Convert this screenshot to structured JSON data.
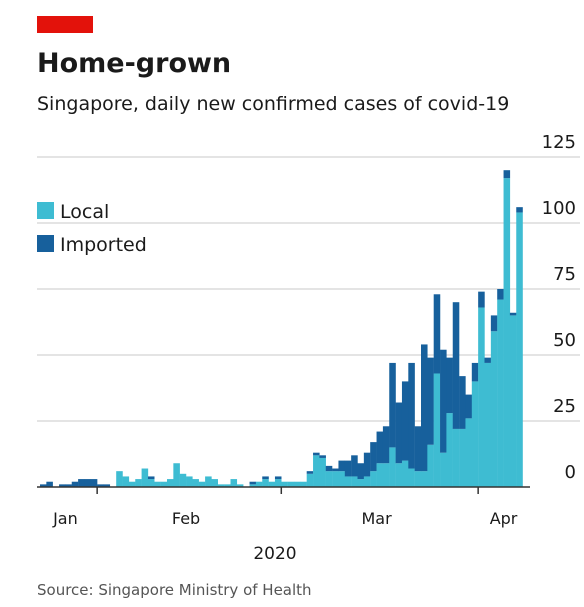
{
  "chart_data": {
    "type": "bar",
    "stacked": true,
    "title": "Home-grown",
    "subtitle": "Singapore, daily new confirmed cases of covid-19",
    "xlabel": "2020",
    "source": "Source: Singapore Ministry of Health",
    "series": [
      {
        "name": "Local",
        "color": "#3ebcd2",
        "values": [
          0,
          0,
          0,
          0,
          0,
          0,
          0,
          0,
          0,
          0,
          0,
          0,
          6,
          4,
          2,
          3,
          7,
          3,
          2,
          2,
          3,
          9,
          5,
          4,
          3,
          2,
          4,
          3,
          1,
          1,
          3,
          1,
          0,
          1,
          2,
          3,
          2,
          3,
          2,
          2,
          2,
          2,
          5,
          12,
          11,
          6,
          6,
          6,
          4,
          4,
          3,
          4,
          6,
          9,
          9,
          15,
          9,
          10,
          7,
          6,
          6,
          16,
          43,
          13,
          28,
          22,
          22,
          26,
          40,
          68,
          47,
          59,
          71,
          117,
          65,
          104
        ]
      },
      {
        "name": "Imported",
        "color": "#17609c",
        "values": [
          1,
          2,
          0,
          1,
          1,
          2,
          3,
          3,
          3,
          1,
          1,
          0,
          0,
          0,
          0,
          0,
          0,
          1,
          0,
          0,
          0,
          0,
          0,
          0,
          0,
          0,
          0,
          0,
          0,
          0,
          0,
          0,
          0,
          1,
          0,
          1,
          0,
          1,
          0,
          0,
          0,
          0,
          1,
          1,
          1,
          2,
          1,
          4,
          6,
          8,
          6,
          9,
          11,
          12,
          14,
          32,
          23,
          30,
          40,
          17,
          48,
          33,
          30,
          39,
          21,
          48,
          20,
          9,
          7,
          6,
          2,
          6,
          4,
          3,
          1,
          2
        ]
      }
    ],
    "xlim": [
      0,
      76
    ],
    "xticks": [
      9,
      38,
      69
    ],
    "month_labels": [
      {
        "value": 4,
        "label": "Jan"
      },
      {
        "value": 23,
        "label": "Feb"
      },
      {
        "value": 53,
        "label": "Mar"
      },
      {
        "value": 73,
        "label": "Apr"
      }
    ],
    "ylim": [
      0,
      125
    ],
    "yticks": [
      0,
      25,
      50,
      75,
      100,
      125
    ],
    "grid": true,
    "legend": "upper left"
  }
}
